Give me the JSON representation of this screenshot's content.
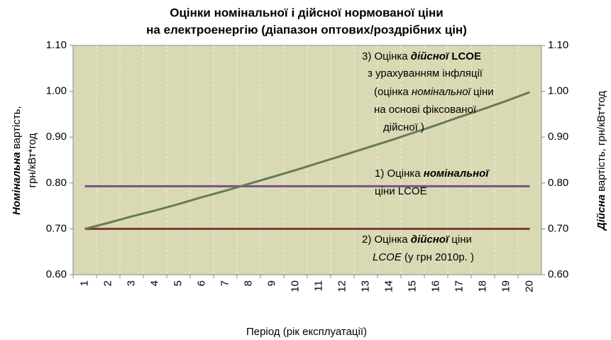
{
  "chart_data": {
    "type": "line",
    "title": [
      "Оцінки номінальної і дійсної  нормованої ціни",
      "на електроенергію (діапазон оптових/роздрібних цін)"
    ],
    "x_label": "Період (рік експлуатації)",
    "y_label": [
      [
        {
          "text": "Номінальна",
          "bold": true,
          "italic": true
        },
        {
          "text": " вартість,",
          "bold": false,
          "italic": false
        }
      ],
      [
        {
          "text": "грн/кВт*год",
          "bold": false,
          "italic": false
        }
      ]
    ],
    "y2_label": [
      {
        "text": "Дійсна",
        "bold": true,
        "italic": true
      },
      {
        "text": " вартість, грн/кВт*год",
        "bold": false,
        "italic": false
      }
    ],
    "categories": [
      "1",
      "2",
      "3",
      "4",
      "5",
      "6",
      "7",
      "8",
      "9",
      "10",
      "11",
      "12",
      "13",
      "14",
      "15",
      "16",
      "17",
      "18",
      "19",
      "20"
    ],
    "series": [
      {
        "name": "Оцінка номінальної ціни LCOE",
        "color": "#7b4f8c",
        "values": [
          0.793,
          0.793,
          0.793,
          0.793,
          0.793,
          0.793,
          0.793,
          0.793,
          0.793,
          0.793,
          0.793,
          0.793,
          0.793,
          0.793,
          0.793,
          0.793,
          0.793,
          0.793,
          0.793,
          0.793
        ]
      },
      {
        "name": "Оцінка дійсної ціни LCOE",
        "color": "#7a3b38",
        "values": [
          0.7,
          0.7,
          0.7,
          0.7,
          0.7,
          0.7,
          0.7,
          0.7,
          0.7,
          0.7,
          0.7,
          0.7,
          0.7,
          0.7,
          0.7,
          0.7,
          0.7,
          0.7,
          0.7,
          0.7
        ]
      },
      {
        "name": "Оцінка дійсної LCOE з урахуванням інфляції",
        "color": "#667a58",
        "values": [
          0.7,
          0.713,
          0.727,
          0.74,
          0.754,
          0.769,
          0.783,
          0.798,
          0.813,
          0.828,
          0.844,
          0.86,
          0.876,
          0.892,
          0.909,
          0.926,
          0.944,
          0.961,
          0.979,
          0.998
        ]
      }
    ],
    "ylim": [
      0.6,
      1.1
    ],
    "yticks": [
      {
        "value": 0.6,
        "label": "0.60"
      },
      {
        "value": 0.7,
        "label": "0.70"
      },
      {
        "value": 0.8,
        "label": "0.80"
      },
      {
        "value": 0.9,
        "label": "0.90"
      },
      {
        "value": 1.0,
        "label": "1.00"
      },
      {
        "value": 1.1,
        "label": "1.10"
      }
    ],
    "y2lim": [
      0.6,
      1.1
    ],
    "y2ticks": [
      {
        "value": 0.6,
        "label": "0.60"
      },
      {
        "value": 0.7,
        "label": "0.70"
      },
      {
        "value": 0.8,
        "label": "0.80"
      },
      {
        "value": 0.9,
        "label": "0.90"
      },
      {
        "value": 1.0,
        "label": "1.00"
      },
      {
        "value": 1.1,
        "label": "1.10"
      }
    ],
    "plot_background": "#d9dab4",
    "grid": true,
    "annotations": [
      [
        [
          {
            "text": "3) Оцінка ",
            "bold": false,
            "italic": false
          },
          {
            "text": "дійсної",
            "bold": true,
            "italic": true
          },
          {
            "text": " LCOE",
            "bold": true,
            "italic": false
          }
        ],
        [
          {
            "text": "з урахуванням   інфляції",
            "bold": false,
            "italic": false
          }
        ],
        [
          {
            "text": "(оцінка ",
            "bold": false,
            "italic": false
          },
          {
            "text": "номінальної",
            "bold": false,
            "italic": true
          },
          {
            "text": " ціни",
            "bold": false,
            "italic": false
          }
        ],
        [
          {
            "text": "на основі фіксованої",
            "bold": false,
            "italic": false
          }
        ],
        [
          {
            "text": "дійсної )",
            "bold": false,
            "italic": false
          }
        ]
      ],
      [
        [
          {
            "text": "1) Оцінка ",
            "bold": false,
            "italic": false
          },
          {
            "text": "номінальної",
            "bold": true,
            "italic": true
          }
        ],
        [
          {
            "text": "ціни LCOE",
            "bold": false,
            "italic": false
          }
        ]
      ],
      [
        [
          {
            "text": "2) Оцінка ",
            "bold": false,
            "italic": false
          },
          {
            "text": "дійсної",
            "bold": true,
            "italic": true
          },
          {
            "text": " ціни",
            "bold": false,
            "italic": false
          }
        ],
        [
          {
            "text": "LCOE",
            "bold": false,
            "italic": true
          },
          {
            "text": " (у грн 2010р. )",
            "bold": false,
            "italic": false
          }
        ]
      ]
    ]
  }
}
